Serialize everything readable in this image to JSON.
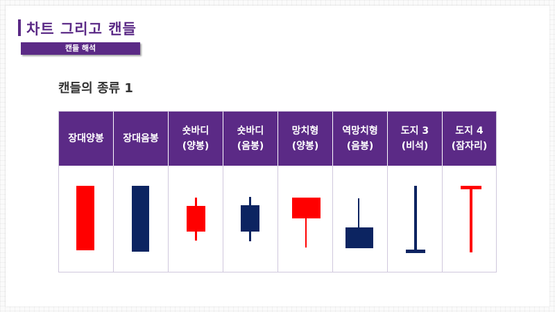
{
  "slide": {
    "title": "차트 그리고 캔들",
    "subtitle": "캔들 해석",
    "heading": "캔들의 종류 1"
  },
  "colors": {
    "accent": "#5b2a86",
    "bullish": "#ff0000",
    "bearish": "#0c2461"
  },
  "table": {
    "columns": [
      {
        "line1": "장대양봉",
        "line2": "",
        "icon": "long-bullish-candle-icon"
      },
      {
        "line1": "장대음봉",
        "line2": "",
        "icon": "long-bearish-candle-icon"
      },
      {
        "line1": "숏바디",
        "line2": "(양봉)",
        "icon": "short-body-bullish-candle-icon"
      },
      {
        "line1": "숏바디",
        "line2": "(음봉)",
        "icon": "short-body-bearish-candle-icon"
      },
      {
        "line1": "망치형",
        "line2": "(양봉)",
        "icon": "hammer-bullish-candle-icon"
      },
      {
        "line1": "역망치형",
        "line2": "(음봉)",
        "icon": "inverted-hammer-bearish-candle-icon"
      },
      {
        "line1": "도지 3",
        "line2": "(비석)",
        "icon": "gravestone-doji-icon"
      },
      {
        "line1": "도지 4",
        "line2": "(잠자리)",
        "icon": "dragonfly-doji-icon"
      }
    ]
  }
}
